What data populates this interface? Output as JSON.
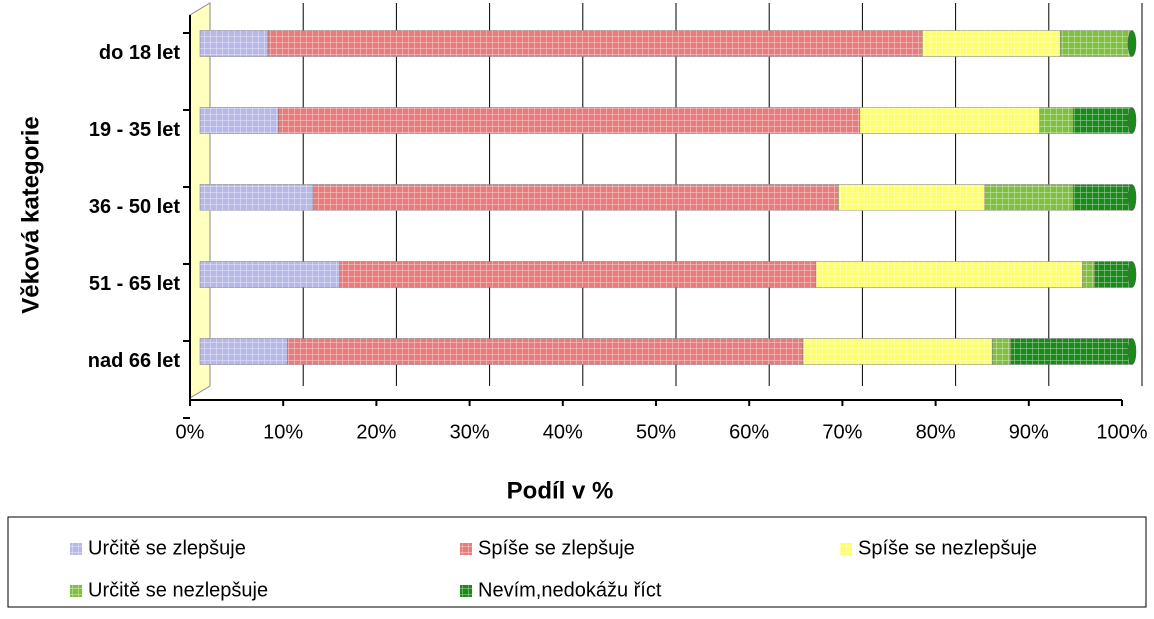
{
  "chart_data": {
    "type": "stacked_barh",
    "xlabel": "Podíl v %",
    "ylabel": "Věková kategorie",
    "categories": [
      "do 18 let",
      "19 - 35 let",
      "36 - 50 let",
      "51 - 65 let",
      "nad 66 let"
    ],
    "series": [
      {
        "name": "Určitě se zlepšuje",
        "color": "#b8b8e8",
        "values": [
          7.3,
          8.4,
          12.1,
          15.0,
          9.4
        ]
      },
      {
        "name": "Spíše se zlepšuje",
        "color": "#e87c7c",
        "values": [
          70.2,
          62.4,
          56.4,
          51.1,
          55.3
        ]
      },
      {
        "name": "Spíše se nezlepšuje",
        "color": "#ffff66",
        "values": [
          14.8,
          19.3,
          15.7,
          28.6,
          20.3
        ]
      },
      {
        "name": "Určitě se nezlepšuje",
        "color": "#80c040",
        "values": [
          7.7,
          3.6,
          9.5,
          1.3,
          2.0
        ]
      },
      {
        "name": "Nevím,nedokážu říct",
        "color": "#1a8a1a",
        "values": [
          0,
          6.3,
          6.3,
          4.0,
          13.0
        ]
      }
    ],
    "xlim": [
      0,
      100
    ],
    "xticks": [
      {
        "value": 0,
        "label": "0%"
      },
      {
        "value": 10,
        "label": "10%"
      },
      {
        "value": 20,
        "label": "20%"
      },
      {
        "value": 30,
        "label": "30%"
      },
      {
        "value": 40,
        "label": "40%"
      },
      {
        "value": 50,
        "label": "50%"
      },
      {
        "value": 60,
        "label": "60%"
      },
      {
        "value": 70,
        "label": "70%"
      },
      {
        "value": 80,
        "label": "80%"
      },
      {
        "value": 90,
        "label": "90%"
      },
      {
        "value": 100,
        "label": "100%"
      }
    ],
    "grid": true,
    "legend": "bottom"
  }
}
